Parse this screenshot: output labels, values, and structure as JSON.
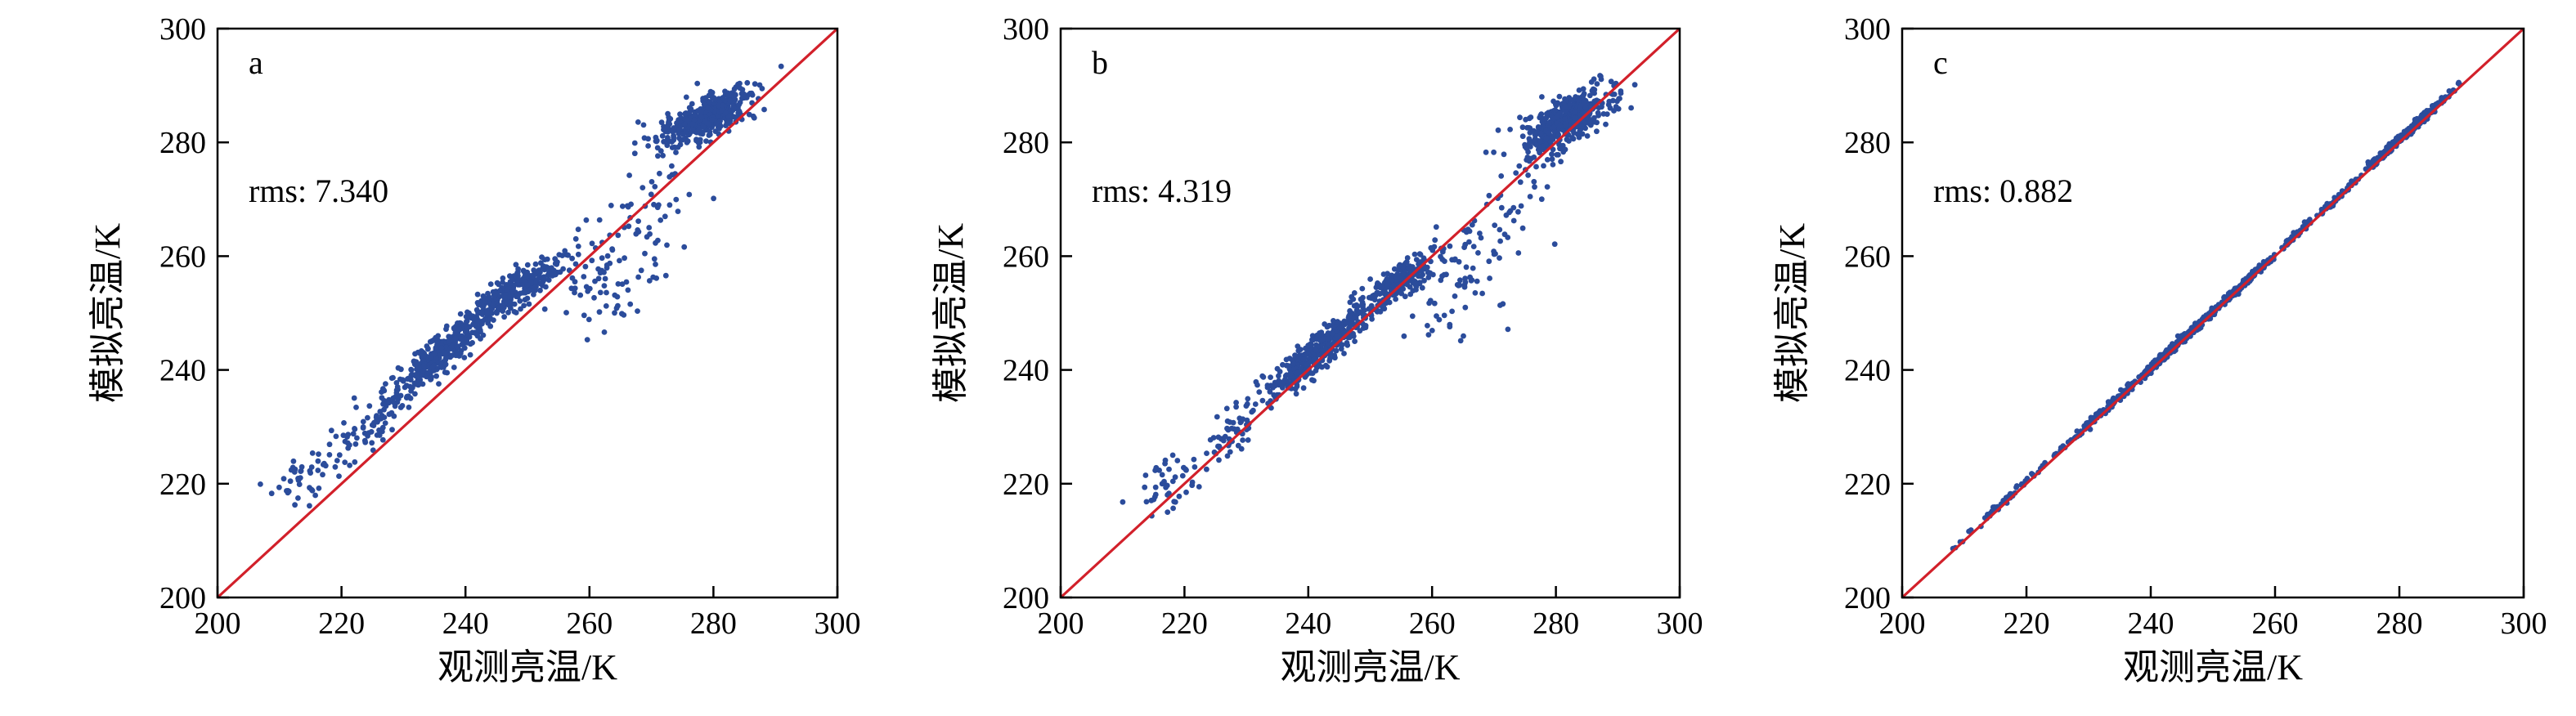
{
  "colors": {
    "points": "#2b4c9b",
    "reference_line": "#d2202a",
    "axes": "#000000"
  },
  "chart_data": [
    {
      "type": "scatter",
      "panel_label": "a",
      "annotation": "rms: 7.340",
      "xlabel": "观测亮温/K",
      "ylabel": "模拟亮温/K",
      "xlim": [
        200,
        300
      ],
      "ylim": [
        200,
        300
      ],
      "xticks": [
        "200",
        "220",
        "240",
        "260",
        "280",
        "300"
      ],
      "yticks": [
        "200",
        "220",
        "240",
        "260",
        "280",
        "300"
      ],
      "grid": false,
      "reference_line": {
        "from": [
          200,
          200
        ],
        "to": [
          300,
          300
        ]
      },
      "clusters": [
        {
          "cx": 214,
          "cy": 220.5,
          "sx": 2.8,
          "sy": 2.5,
          "corr": 0.5,
          "n": 40
        },
        {
          "cx": 224,
          "cy": 230,
          "sx": 3.5,
          "sy": 3.2,
          "corr": 0.75,
          "n": 70
        },
        {
          "cx": 236,
          "cy": 243,
          "sx": 4,
          "sy": 4,
          "corr": 0.9,
          "n": 380
        },
        {
          "cx": 248,
          "cy": 254,
          "sx": 4,
          "sy": 3,
          "corr": 0.85,
          "n": 260
        },
        {
          "cx": 262,
          "cy": 257,
          "sx": 5,
          "sy": 5,
          "corr": 0.3,
          "n": 80
        },
        {
          "cx": 270,
          "cy": 270,
          "sx": 3.5,
          "sy": 6,
          "corr": 0.4,
          "n": 45
        },
        {
          "cx": 279,
          "cy": 284.5,
          "sx": 3.5,
          "sy": 2.5,
          "corr": 0.7,
          "n": 440
        }
      ]
    },
    {
      "type": "scatter",
      "panel_label": "b",
      "annotation": "rms: 4.319",
      "xlabel": "观测亮温/K",
      "ylabel": "模拟亮温/K",
      "xlim": [
        200,
        300
      ],
      "ylim": [
        200,
        300
      ],
      "xticks": [
        "200",
        "220",
        "240",
        "260",
        "280",
        "300"
      ],
      "yticks": [
        "200",
        "220",
        "240",
        "260",
        "280",
        "300"
      ],
      "grid": false,
      "reference_line": {
        "from": [
          200,
          200
        ],
        "to": [
          300,
          300
        ]
      },
      "clusters": [
        {
          "cx": 218,
          "cy": 220,
          "sx": 3,
          "sy": 2.5,
          "corr": 0.5,
          "n": 40
        },
        {
          "cx": 228,
          "cy": 230,
          "sx": 3.5,
          "sy": 3.5,
          "corr": 0.8,
          "n": 60
        },
        {
          "cx": 242,
          "cy": 243.5,
          "sx": 4.5,
          "sy": 4,
          "corr": 0.9,
          "n": 420
        },
        {
          "cx": 254,
          "cy": 255,
          "sx": 3,
          "sy": 2.5,
          "corr": 0.8,
          "n": 220
        },
        {
          "cx": 265,
          "cy": 256,
          "sx": 5,
          "sy": 5,
          "corr": 0.3,
          "n": 70
        },
        {
          "cx": 272,
          "cy": 270,
          "sx": 4,
          "sy": 6,
          "corr": 0.4,
          "n": 40
        },
        {
          "cx": 282,
          "cy": 284,
          "sx": 3.5,
          "sy": 3,
          "corr": 0.7,
          "n": 440
        }
      ]
    },
    {
      "type": "scatter",
      "panel_label": "c",
      "annotation": "rms: 0.882",
      "xlabel": "观测亮温/K",
      "ylabel": "模拟亮温/K",
      "xlim": [
        200,
        300
      ],
      "ylim": [
        200,
        300
      ],
      "xticks": [
        "200",
        "220",
        "240",
        "260",
        "280",
        "300"
      ],
      "yticks": [
        "200",
        "220",
        "240",
        "260",
        "280",
        "300"
      ],
      "grid": false,
      "reference_line": {
        "from": [
          200,
          200
        ],
        "to": [
          300,
          300
        ]
      },
      "clusters": [
        {
          "cx": 216,
          "cy": 216.5,
          "sx": 3.5,
          "sy": 3.5,
          "corr": 0.995,
          "n": 50
        },
        {
          "cx": 232,
          "cy": 232.4,
          "sx": 4,
          "sy": 4,
          "corr": 0.995,
          "n": 110
        },
        {
          "cx": 244,
          "cy": 244.3,
          "sx": 4,
          "sy": 4,
          "corr": 0.995,
          "n": 280
        },
        {
          "cx": 254,
          "cy": 254.2,
          "sx": 3,
          "sy": 3,
          "corr": 0.995,
          "n": 200
        },
        {
          "cx": 266,
          "cy": 266.3,
          "sx": 4,
          "sy": 4,
          "corr": 0.995,
          "n": 60
        },
        {
          "cx": 281,
          "cy": 281.5,
          "sx": 3.5,
          "sy": 3.5,
          "corr": 0.995,
          "n": 340
        }
      ]
    }
  ]
}
